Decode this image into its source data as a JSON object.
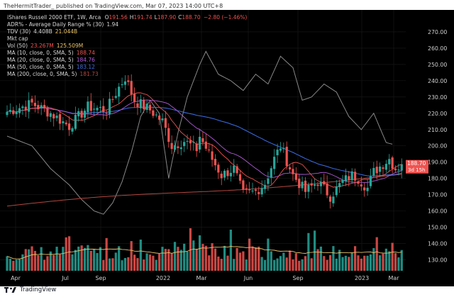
{
  "header": {
    "text": "TheHermitTrader_ published on TradingView.com, Mar 07, 2023 14:00 UTC+8"
  },
  "legend": {
    "symbol": "iShares Russell 2000 ETF, 1W, Arca",
    "ohlc": [
      {
        "label": "O",
        "value": "191.56"
      },
      {
        "label": "H",
        "value": "191.74"
      },
      {
        "label": "L",
        "value": "187.90"
      },
      {
        "label": "C",
        "value": "188.70"
      }
    ],
    "change": "−2.80 (−1.46%)",
    "rows": [
      {
        "label": "ADR% - Average Daily Range % (30)",
        "value": "1.94",
        "color": "#d8d8d8"
      },
      {
        "label": "TDV (30)",
        "value": "4.408B",
        "value2": "21.044B",
        "color": "#d8d8d8",
        "color2": "#e8c36a"
      },
      {
        "label": "Mkt cap",
        "value": "",
        "color": "#d8d8d8"
      },
      {
        "label": "Vol (50)",
        "value": "23.267M",
        "value2": "125.509M",
        "color": "#ef5350",
        "color2": "#e8c36a"
      },
      {
        "label": "MA (10, close, 0, SMA, 5)",
        "value": "188.74",
        "color": "#ef5350"
      },
      {
        "label": "MA (20, close, 0, SMA, 5)",
        "value": "184.76",
        "color": "#b05ad8"
      },
      {
        "label": "MA (50, close, 0, SMA, 5)",
        "value": "183.12",
        "color": "#3a6ee8"
      },
      {
        "label": "MA (200, close, 0, SMA, 5)",
        "value": "181.73",
        "color": "#b5473f"
      }
    ]
  },
  "price_tag": {
    "value": "188.70",
    "countdown": "3d 15h"
  },
  "footer": {
    "brand": "TradingView"
  },
  "colors": {
    "up": "#26a69a",
    "down": "#ef5350",
    "background": "#000000"
  },
  "chart_data": {
    "type": "candlestick",
    "timeframe": "1W",
    "x_labels": [
      "Apr",
      "Jul",
      "Sep",
      "2022",
      "Mar",
      "Jun",
      "Sep",
      "2023",
      "Mar"
    ],
    "y_ticks": [
      130,
      140,
      150,
      160,
      170,
      180,
      190,
      200,
      210,
      220,
      230,
      240,
      250,
      260,
      270
    ],
    "ylim": [
      125,
      280
    ],
    "close_keypoints": [
      [
        0,
        221
      ],
      [
        8,
        226
      ],
      [
        14,
        220
      ],
      [
        20,
        212
      ],
      [
        26,
        224
      ],
      [
        32,
        222
      ],
      [
        36,
        236
      ],
      [
        38,
        242
      ],
      [
        41,
        228
      ],
      [
        46,
        222
      ],
      [
        50,
        215
      ],
      [
        53,
        200
      ],
      [
        57,
        203
      ],
      [
        61,
        198
      ],
      [
        62,
        206
      ],
      [
        65,
        195
      ],
      [
        69,
        182
      ],
      [
        73,
        186
      ],
      [
        76,
        170
      ],
      [
        80,
        172
      ],
      [
        83,
        177
      ],
      [
        86,
        192
      ],
      [
        88,
        200
      ],
      [
        92,
        182
      ],
      [
        96,
        172
      ],
      [
        100,
        178
      ],
      [
        104,
        169
      ],
      [
        108,
        178
      ],
      [
        111,
        182
      ],
      [
        113,
        180
      ],
      [
        116,
        174
      ],
      [
        118,
        184
      ],
      [
        121,
        189
      ],
      [
        123,
        192
      ],
      [
        125,
        186
      ],
      [
        127,
        188.7
      ]
    ],
    "ma_values": {
      "ma10": 188.74,
      "ma20": 184.76,
      "ma50": 183.12,
      "ma200": 181.73
    },
    "last_close": 188.7,
    "gray_line_keypoints": [
      [
        0,
        206
      ],
      [
        8,
        200
      ],
      [
        14,
        186
      ],
      [
        20,
        176
      ],
      [
        24,
        167
      ],
      [
        28,
        160
      ],
      [
        31,
        158
      ],
      [
        34,
        165
      ],
      [
        37,
        178
      ],
      [
        40,
        196
      ],
      [
        43,
        218
      ],
      [
        46,
        228
      ],
      [
        49,
        220
      ],
      [
        52,
        180
      ],
      [
        55,
        208
      ],
      [
        58,
        230
      ],
      [
        62,
        250
      ],
      [
        64,
        258
      ],
      [
        68,
        244
      ],
      [
        72,
        240
      ],
      [
        76,
        234
      ],
      [
        80,
        244
      ],
      [
        84,
        238
      ],
      [
        88,
        255
      ],
      [
        92,
        248
      ],
      [
        95,
        228
      ],
      [
        98,
        230
      ],
      [
        102,
        238
      ],
      [
        106,
        233
      ],
      [
        110,
        218
      ],
      [
        114,
        210
      ],
      [
        118,
        220
      ],
      [
        122,
        202
      ],
      [
        124,
        201
      ]
    ]
  }
}
